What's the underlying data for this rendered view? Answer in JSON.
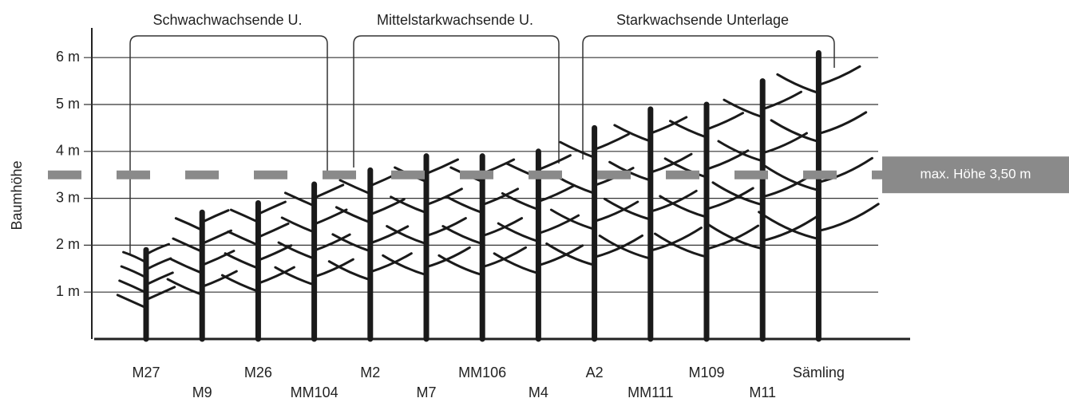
{
  "chart_data": {
    "type": "tree-height",
    "y_label": "Baumhöhe",
    "group_labels": [
      "Schwachwachsende U.",
      "Mittelstarkwachsende U.",
      "Starkwachsende Unterlage"
    ],
    "categories": [
      "M27",
      "M9",
      "M26",
      "MM104",
      "M2",
      "M7",
      "MM106",
      "M4",
      "A2",
      "MM111",
      "M109",
      "M11",
      "Sämling"
    ],
    "values": [
      1.9,
      2.7,
      2.9,
      3.3,
      3.6,
      3.9,
      3.9,
      4.0,
      4.5,
      4.9,
      5.0,
      5.5,
      6.1
    ],
    "color": "#1a1a1a",
    "ylim": [
      0,
      6.6
    ],
    "yticks": [
      {
        "value": 1,
        "label": "1 m"
      },
      {
        "value": 2,
        "label": "2 m"
      },
      {
        "value": 3,
        "label": "3 m"
      },
      {
        "value": 4,
        "label": "4 m"
      },
      {
        "value": 5,
        "label": "5 m"
      },
      {
        "value": 6,
        "label": "6 m"
      }
    ],
    "grid": true,
    "reference_line": {
      "value": 3.5,
      "label": "max. Höhe 3,50 m",
      "color": "#8a8a8a"
    }
  }
}
